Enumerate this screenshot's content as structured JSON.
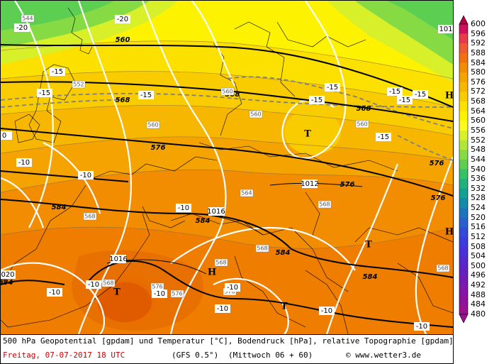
{
  "caption": {
    "line1": "500 hPa Geopotential [gpdam] und Temperatur [°C], Bodendruck [hPa], relative Topographie [gpdam]",
    "date": "Freitag, 07-07-2017  18 UTC",
    "model": "(GFS 0.5°)",
    "run": "(Mittwoch 06 + 60)",
    "credit": "© www.wetter3.de"
  },
  "legend": {
    "levels": [
      "600",
      "596",
      "592",
      "588",
      "584",
      "580",
      "576",
      "572",
      "568",
      "564",
      "560",
      "556",
      "552",
      "548",
      "544",
      "540",
      "536",
      "532",
      "528",
      "524",
      "520",
      "516",
      "512",
      "508",
      "504",
      "500",
      "496",
      "492",
      "488",
      "484",
      "480"
    ],
    "colors": [
      "#b80040",
      "#d0105a",
      "#e83a4a",
      "#f05a30",
      "#f27010",
      "#f28c00",
      "#f5a300",
      "#f7b700",
      "#f9cc00",
      "#fbe000",
      "#fdf200",
      "#fdfb1c",
      "#d8f02a",
      "#b0e638",
      "#86da44",
      "#5ccf52",
      "#34c264",
      "#1fb07c",
      "#12a094",
      "#148aaa",
      "#1e74bc",
      "#2860cc",
      "#324cd8",
      "#3c3ce0",
      "#4a30d8",
      "#5828cc",
      "#6620c0",
      "#741ab4",
      "#8216a8",
      "#8e129c",
      "#9a1090"
    ]
  },
  "map": {
    "contour_labels": [
      {
        "text": "544",
        "kind": "box"
      },
      {
        "text": "-20",
        "kind": "plain"
      },
      {
        "text": "-20",
        "kind": "plain"
      },
      {
        "text": "560",
        "kind": "bold"
      },
      {
        "text": "101",
        "kind": "plain"
      },
      {
        "text": "-15",
        "kind": "plain"
      },
      {
        "text": "552",
        "kind": "box"
      },
      {
        "text": "568",
        "kind": "bold"
      },
      {
        "text": "-15",
        "kind": "plain"
      },
      {
        "text": "568",
        "kind": "bold"
      },
      {
        "text": "560",
        "kind": "box"
      },
      {
        "text": "-15",
        "kind": "plain"
      },
      {
        "text": "-15",
        "kind": "plain"
      },
      {
        "text": "568",
        "kind": "bold"
      },
      {
        "text": "-15",
        "kind": "plain"
      },
      {
        "text": "-15",
        "kind": "plain"
      },
      {
        "text": "-15",
        "kind": "plain"
      },
      {
        "text": "-15",
        "kind": "plain"
      },
      {
        "text": "560",
        "kind": "box"
      },
      {
        "text": "0",
        "kind": "plain"
      },
      {
        "text": "560",
        "kind": "box"
      },
      {
        "text": "560",
        "kind": "box"
      },
      {
        "text": "-15",
        "kind": "plain"
      },
      {
        "text": "576",
        "kind": "bold"
      },
      {
        "text": "-10",
        "kind": "plain"
      },
      {
        "text": "-10",
        "kind": "plain"
      },
      {
        "text": "1012",
        "kind": "plain"
      },
      {
        "text": "576",
        "kind": "bold"
      },
      {
        "text": "564",
        "kind": "box"
      },
      {
        "text": "576",
        "kind": "bold"
      },
      {
        "text": "584",
        "kind": "bold"
      },
      {
        "text": "568",
        "kind": "box"
      },
      {
        "text": "-10",
        "kind": "plain"
      },
      {
        "text": "1016",
        "kind": "plain"
      },
      {
        "text": "584",
        "kind": "bold"
      },
      {
        "text": "568",
        "kind": "box"
      },
      {
        "text": "568",
        "kind": "box"
      },
      {
        "text": "584",
        "kind": "bold"
      },
      {
        "text": "568",
        "kind": "box"
      },
      {
        "text": "1016",
        "kind": "plain"
      },
      {
        "text": "568",
        "kind": "box"
      },
      {
        "text": "020",
        "kind": "plain"
      },
      {
        "text": "584",
        "kind": "bold"
      },
      {
        "text": "-10",
        "kind": "plain"
      },
      {
        "text": "-10",
        "kind": "plain"
      },
      {
        "text": "576",
        "kind": "box"
      },
      {
        "text": "-10",
        "kind": "plain"
      },
      {
        "text": "576",
        "kind": "box"
      },
      {
        "text": "576",
        "kind": "box"
      },
      {
        "text": "-10",
        "kind": "plain"
      },
      {
        "text": "584",
        "kind": "bold"
      },
      {
        "text": "568",
        "kind": "box"
      },
      {
        "text": "-10",
        "kind": "plain"
      },
      {
        "text": "-10",
        "kind": "plain"
      },
      {
        "text": "-10",
        "kind": "plain"
      },
      {
        "text": "576",
        "kind": "bold"
      }
    ],
    "pressure_centers": [
      {
        "text": "T",
        "type": "low"
      },
      {
        "text": "T",
        "type": "low"
      },
      {
        "text": "T",
        "type": "low"
      },
      {
        "text": "T",
        "type": "low"
      },
      {
        "text": "H",
        "type": "high"
      },
      {
        "text": "H",
        "type": "high"
      },
      {
        "text": "H",
        "type": "high"
      }
    ]
  }
}
